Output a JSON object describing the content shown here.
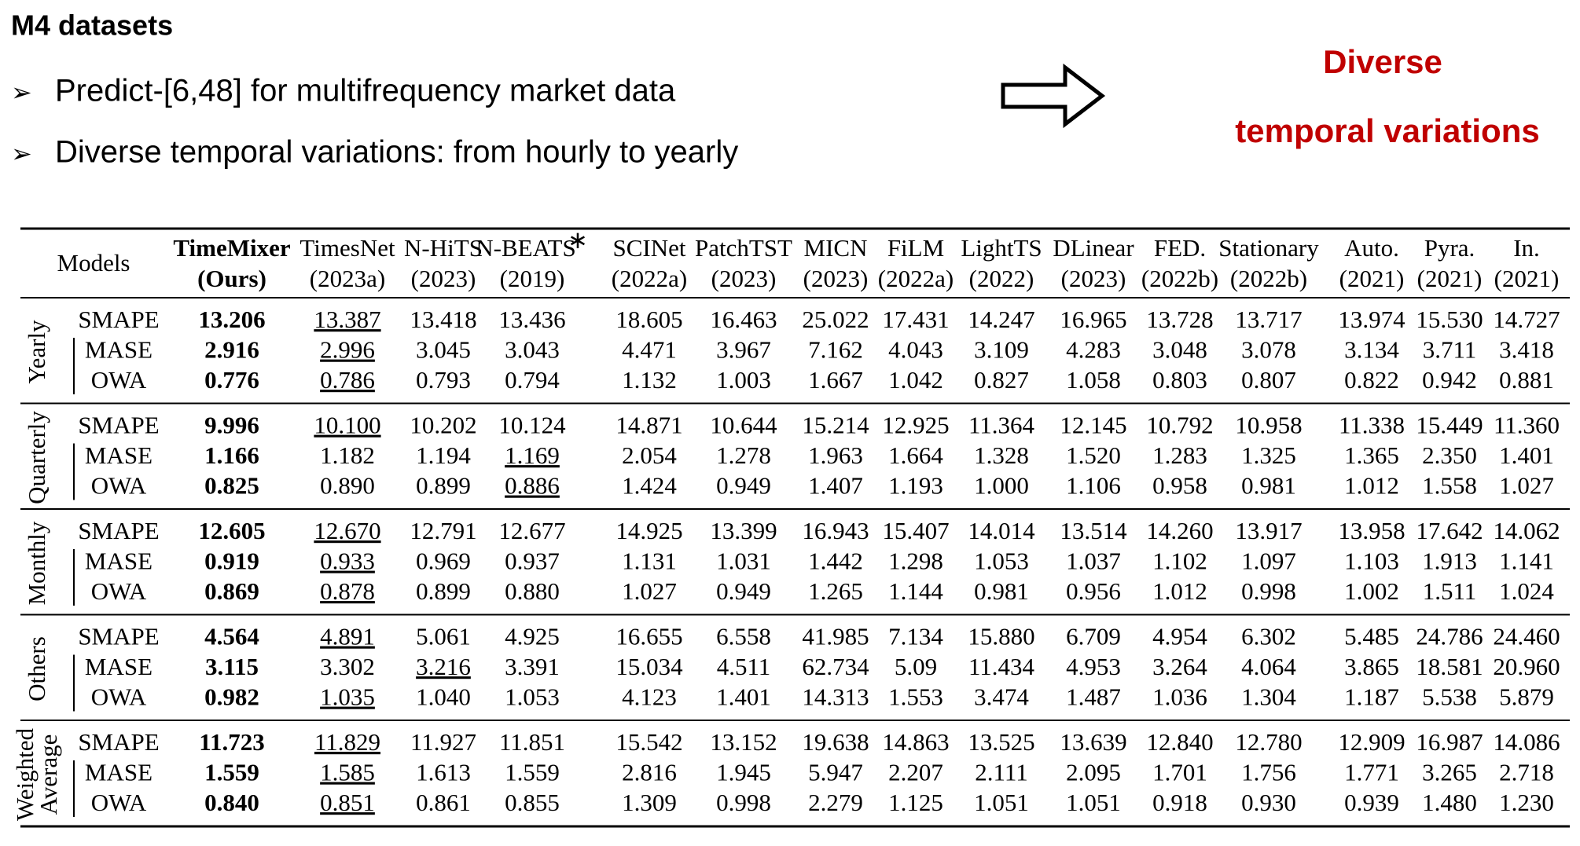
{
  "header": {
    "title": "M4 datasets",
    "bullets": [
      "Predict-[6,48] for multifrequency market data",
      "Diverse temporal variations: from hourly to yearly"
    ],
    "callout": [
      "Diverse",
      "temporal variations"
    ]
  },
  "table": {
    "models_label": "Models",
    "columns": [
      {
        "name": "TimeMixer",
        "year": "(Ours)"
      },
      {
        "name": "TimesNet",
        "year": "(2023a)"
      },
      {
        "name": "N-HiTS",
        "year": "(2023)"
      },
      {
        "name": "N-BEATS",
        "sup": "∗",
        "year": "(2019)"
      },
      {
        "name": "SCINet",
        "year": "(2022a)"
      },
      {
        "name": "PatchTST",
        "year": "(2023)"
      },
      {
        "name": "MICN",
        "year": "(2023)"
      },
      {
        "name": "FiLM",
        "year": "(2022a)"
      },
      {
        "name": "LightTS",
        "year": "(2022)"
      },
      {
        "name": "DLinear",
        "year": "(2023)"
      },
      {
        "name": "FED.",
        "year": "(2022b)"
      },
      {
        "name": "Stationary",
        "year": "(2022b)"
      },
      {
        "name": "Auto.",
        "year": "(2021)"
      },
      {
        "name": "Pyra.",
        "year": "(2021)"
      },
      {
        "name": "In.",
        "year": "(2021)"
      }
    ],
    "groups": [
      {
        "label": [
          "Yearly"
        ],
        "rows": [
          {
            "metric": "SMAPE",
            "best": 0,
            "second": 1,
            "values": [
              "13.206",
              "13.387",
              "13.418",
              "13.436",
              "18.605",
              "16.463",
              "25.022",
              "17.431",
              "14.247",
              "16.965",
              "13.728",
              "13.717",
              "13.974",
              "15.530",
              "14.727"
            ]
          },
          {
            "metric": "MASE",
            "best": 0,
            "second": 1,
            "values": [
              "2.916",
              "2.996",
              "3.045",
              "3.043",
              "4.471",
              "3.967",
              "7.162",
              "4.043",
              "3.109",
              "4.283",
              "3.048",
              "3.078",
              "3.134",
              "3.711",
              "3.418"
            ]
          },
          {
            "metric": "OWA",
            "best": 0,
            "second": 1,
            "values": [
              "0.776",
              "0.786",
              "0.793",
              "0.794",
              "1.132",
              "1.003",
              "1.667",
              "1.042",
              "0.827",
              "1.058",
              "0.803",
              "0.807",
              "0.822",
              "0.942",
              "0.881"
            ]
          }
        ]
      },
      {
        "label": [
          "Quarterly"
        ],
        "rows": [
          {
            "metric": "SMAPE",
            "best": 0,
            "second": 1,
            "values": [
              "9.996",
              "10.100",
              "10.202",
              "10.124",
              "14.871",
              "10.644",
              "15.214",
              "12.925",
              "11.364",
              "12.145",
              "10.792",
              "10.958",
              "11.338",
              "15.449",
              "11.360"
            ]
          },
          {
            "metric": "MASE",
            "best": 0,
            "second": 3,
            "values": [
              "1.166",
              "1.182",
              "1.194",
              "1.169",
              "2.054",
              "1.278",
              "1.963",
              "1.664",
              "1.328",
              "1.520",
              "1.283",
              "1.325",
              "1.365",
              "2.350",
              "1.401"
            ]
          },
          {
            "metric": "OWA",
            "best": 0,
            "second": 3,
            "values": [
              "0.825",
              "0.890",
              "0.899",
              "0.886",
              "1.424",
              "0.949",
              "1.407",
              "1.193",
              "1.000",
              "1.106",
              "0.958",
              "0.981",
              "1.012",
              "1.558",
              "1.027"
            ]
          }
        ]
      },
      {
        "label": [
          "Monthly"
        ],
        "rows": [
          {
            "metric": "SMAPE",
            "best": 0,
            "second": 1,
            "values": [
              "12.605",
              "12.670",
              "12.791",
              "12.677",
              "14.925",
              "13.399",
              "16.943",
              "15.407",
              "14.014",
              "13.514",
              "14.260",
              "13.917",
              "13.958",
              "17.642",
              "14.062"
            ]
          },
          {
            "metric": "MASE",
            "best": 0,
            "second": 1,
            "values": [
              "0.919",
              "0.933",
              "0.969",
              "0.937",
              "1.131",
              "1.031",
              "1.442",
              "1.298",
              "1.053",
              "1.037",
              "1.102",
              "1.097",
              "1.103",
              "1.913",
              "1.141"
            ]
          },
          {
            "metric": "OWA",
            "best": 0,
            "second": 1,
            "values": [
              "0.869",
              "0.878",
              "0.899",
              "0.880",
              "1.027",
              "0.949",
              "1.265",
              "1.144",
              "0.981",
              "0.956",
              "1.012",
              "0.998",
              "1.002",
              "1.511",
              "1.024"
            ]
          }
        ]
      },
      {
        "label": [
          "Others"
        ],
        "rows": [
          {
            "metric": "SMAPE",
            "best": 0,
            "second": 1,
            "values": [
              "4.564",
              "4.891",
              "5.061",
              "4.925",
              "16.655",
              "6.558",
              "41.985",
              "7.134",
              "15.880",
              "6.709",
              "4.954",
              "6.302",
              "5.485",
              "24.786",
              "24.460"
            ]
          },
          {
            "metric": "MASE",
            "best": 0,
            "second": 2,
            "values": [
              "3.115",
              "3.302",
              "3.216",
              "3.391",
              "15.034",
              "4.511",
              "62.734",
              "5.09",
              "11.434",
              "4.953",
              "3.264",
              "4.064",
              "3.865",
              "18.581",
              "20.960"
            ]
          },
          {
            "metric": "OWA",
            "best": 0,
            "second": 1,
            "values": [
              "0.982",
              "1.035",
              "1.040",
              "1.053",
              "4.123",
              "1.401",
              "14.313",
              "1.553",
              "3.474",
              "1.487",
              "1.036",
              "1.304",
              "1.187",
              "5.538",
              "5.879"
            ]
          }
        ]
      },
      {
        "label": [
          "Weighted",
          "Average"
        ],
        "rows": [
          {
            "metric": "SMAPE",
            "best": 0,
            "second": 1,
            "values": [
              "11.723",
              "11.829",
              "11.927",
              "11.851",
              "15.542",
              "13.152",
              "19.638",
              "14.863",
              "13.525",
              "13.639",
              "12.840",
              "12.780",
              "12.909",
              "16.987",
              "14.086"
            ]
          },
          {
            "metric": "MASE",
            "best": 0,
            "second": 1,
            "values": [
              "1.559",
              "1.585",
              "1.613",
              "1.559",
              "2.816",
              "1.945",
              "5.947",
              "2.207",
              "2.111",
              "2.095",
              "1.701",
              "1.756",
              "1.771",
              "3.265",
              "2.718"
            ]
          },
          {
            "metric": "OWA",
            "best": 0,
            "second": 1,
            "values": [
              "0.840",
              "0.851",
              "0.861",
              "0.855",
              "1.309",
              "0.998",
              "2.279",
              "1.125",
              "1.051",
              "1.051",
              "0.918",
              "0.930",
              "0.939",
              "1.480",
              "1.230"
            ]
          }
        ]
      }
    ]
  }
}
